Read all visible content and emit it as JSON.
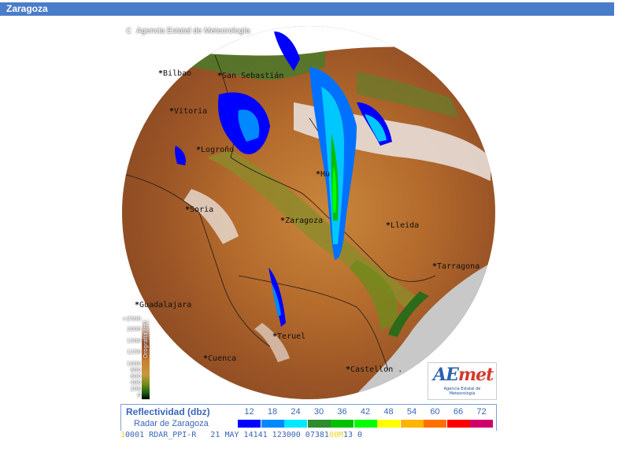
{
  "header": {
    "title": "Zaragoza"
  },
  "map": {
    "credit": "Agencia Estatal de Meteorología",
    "copyright_symbol": "C",
    "cities": [
      {
        "name": "Bilbao"
      },
      {
        "name": "San Sebastián"
      },
      {
        "name": "Vitoria"
      },
      {
        "name": "Logroño"
      },
      {
        "name": "Hu"
      },
      {
        "name": "Soria"
      },
      {
        "name": "Zaragoza"
      },
      {
        "name": "Lleida"
      },
      {
        "name": "Tarragona"
      },
      {
        "name": "Guadalajara"
      },
      {
        "name": "Teruel"
      },
      {
        "name": "Cuenca"
      },
      {
        "name": "Castellon ."
      }
    ],
    "orography": {
      "title": "Orografía (m)",
      "ticks": [
        ">2500",
        "2000",
        "1500",
        "1250",
        "1000",
        "800",
        "600",
        "400",
        "200",
        "0"
      ]
    },
    "logo": {
      "mark_a": "AE",
      "mark_b": "met",
      "subtitle": "Agencia Estatal de Meteorología"
    }
  },
  "legend": {
    "title": "Reflectividad (dbz)",
    "subtitle": "Radar de Zaragoza",
    "steps": [
      {
        "label": "12",
        "color": "#0000ff"
      },
      {
        "label": "18",
        "color": "#0088ff"
      },
      {
        "label": "24",
        "color": "#00e8ff"
      },
      {
        "label": "30",
        "color": "#2e8b2e"
      },
      {
        "label": "36",
        "color": "#00c000"
      },
      {
        "label": "42",
        "color": "#00ff00"
      },
      {
        "label": "48",
        "color": "#ffff00"
      },
      {
        "label": "54",
        "color": "#ffb400"
      },
      {
        "label": "60",
        "color": "#ff7000"
      },
      {
        "label": "66",
        "color": "#ff0000"
      },
      {
        "label": "72",
        "color": "#d0006a"
      }
    ]
  },
  "ticker": {
    "prefix": "1",
    "text": "0001 RDAR_PPI-R   21 MAY 14141 123000 07381",
    "highlight": "00M",
    "suffix": "13 0"
  }
}
